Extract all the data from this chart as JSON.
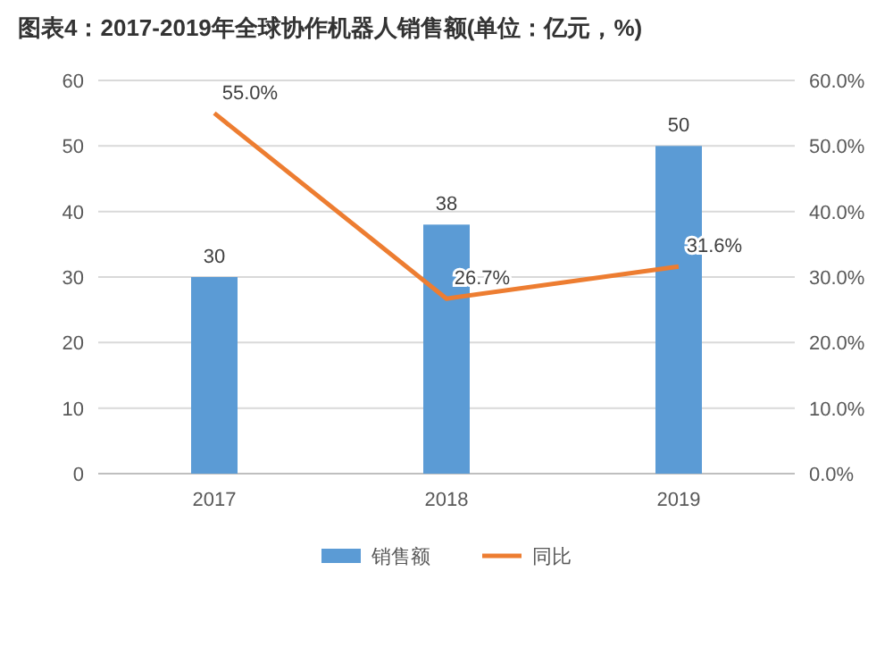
{
  "chart_data": {
    "type": "bar",
    "title": "图表4：2017-2019年全球协作机器人销售额(单位：亿元，%)",
    "categories": [
      "2017",
      "2018",
      "2019"
    ],
    "series": [
      {
        "name": "销售额",
        "color": "#5b9bd5",
        "values": [
          30,
          38,
          50
        ],
        "value_labels": [
          "30",
          "38",
          "50"
        ]
      },
      {
        "name": "同比",
        "type": "line",
        "axis": "y2",
        "color": "#ed7d31",
        "values": [
          55.0,
          26.7,
          31.6
        ],
        "value_labels": [
          "55.0%",
          "26.7%",
          "31.6%"
        ]
      }
    ],
    "ylim": [
      0,
      60
    ],
    "yticks": [
      0,
      10,
      20,
      30,
      40,
      50,
      60
    ],
    "y2lim": [
      0,
      60
    ],
    "y2ticks": [
      {
        "value": 0,
        "label": "0.0%"
      },
      {
        "value": 10,
        "label": "10.0%"
      },
      {
        "value": 20,
        "label": "20.0%"
      },
      {
        "value": 30,
        "label": "30.0%"
      },
      {
        "value": 40,
        "label": "40.0%"
      },
      {
        "value": 50,
        "label": "50.0%"
      },
      {
        "value": 60,
        "label": "60.0%"
      }
    ],
    "grid": "y",
    "legend": "bottom",
    "marker": "none",
    "line_style": "solid"
  }
}
